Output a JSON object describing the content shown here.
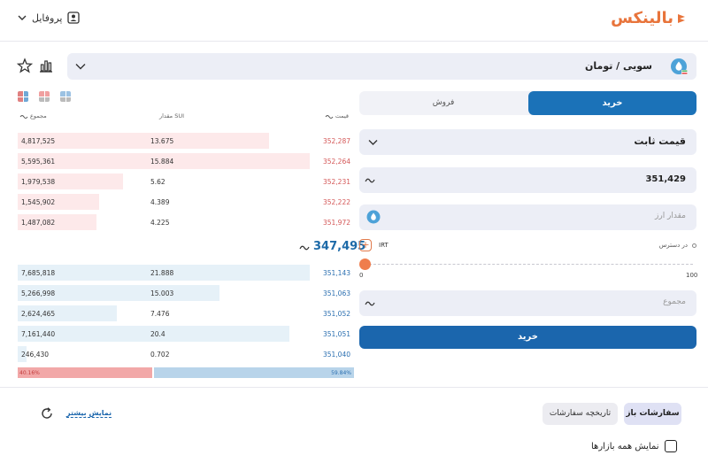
{
  "header": {
    "logo_text": "بالینکس",
    "profile_label": "پروفایل",
    "accent_color": "#e8743b"
  },
  "market": {
    "name": "سویی / تومان"
  },
  "orderbook": {
    "headers": {
      "price": "قیمت",
      "amount": "مقدار SUI",
      "total": "مجموع"
    },
    "sells": [
      {
        "price": "352,287",
        "amount": "13.675",
        "total": "4,817,525",
        "depth": 0.86
      },
      {
        "price": "352,264",
        "amount": "15.884",
        "total": "5,595,361",
        "depth": 1.0
      },
      {
        "price": "352,231",
        "amount": "5.62",
        "total": "1,979,538",
        "depth": 0.36
      },
      {
        "price": "352,222",
        "amount": "4.389",
        "total": "1,545,902",
        "depth": 0.28
      },
      {
        "price": "351,972",
        "amount": "4.225",
        "total": "1,487,082",
        "depth": 0.27
      }
    ],
    "last_price": "347,495",
    "buys": [
      {
        "price": "351,143",
        "amount": "21.888",
        "total": "7,685,818",
        "depth": 1.0
      },
      {
        "price": "351,063",
        "amount": "15.003",
        "total": "5,266,998",
        "depth": 0.69
      },
      {
        "price": "351,052",
        "amount": "7.476",
        "total": "2,624,465",
        "depth": 0.34
      },
      {
        "price": "351,051",
        "amount": "20.4",
        "total": "7,161,440",
        "depth": 0.93
      },
      {
        "price": "351,040",
        "amount": "0.702",
        "total": "246,430",
        "depth": 0.03
      }
    ],
    "sell_ratio": "40.16%",
    "buy_ratio": "59.84%"
  },
  "form": {
    "tab_buy": "خرید",
    "tab_sell": "فروش",
    "order_type": "قیمت ثابت",
    "price_value": "351,429",
    "amount_placeholder": "مقدار ارز",
    "available_label": "در دسترس",
    "available_unit": "IRT",
    "slider_min": "0",
    "slider_max": "100",
    "total_placeholder": "مجموع",
    "submit_label": "خرید"
  },
  "bottom": {
    "open_orders": "سفارشات باز",
    "order_history": "تاریخچه سفارشات",
    "show_more": "نمایش بیشتر",
    "all_markets": "نمایش همه بازارها"
  }
}
